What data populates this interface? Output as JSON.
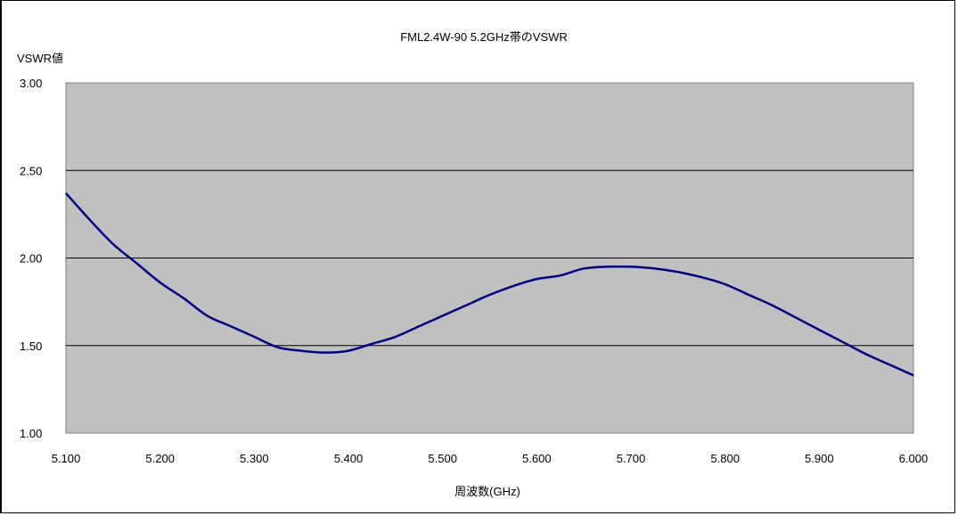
{
  "chart_data": {
    "type": "line",
    "title": "FML2.4W-90 5.2GHz帯のVSWR",
    "ylabel": "VSWR値",
    "xlabel": "周波数(GHz)",
    "xlim": [
      5.1,
      6.0
    ],
    "ylim": [
      1.0,
      3.0
    ],
    "x_ticks": [
      "5.100",
      "5.200",
      "5.300",
      "5.400",
      "5.500",
      "5.600",
      "5.700",
      "5.800",
      "5.900",
      "6.000"
    ],
    "x_tick_values": [
      5.1,
      5.2,
      5.3,
      5.4,
      5.5,
      5.6,
      5.7,
      5.8,
      5.9,
      6.0
    ],
    "y_ticks": [
      "1.00",
      "1.50",
      "2.00",
      "2.50",
      "3.00"
    ],
    "y_tick_values": [
      1.0,
      1.5,
      2.0,
      2.5,
      3.0
    ],
    "grid": "horizontal",
    "colors": {
      "plot_bg": "#c0c0c0",
      "line": "#000080",
      "grid": "#000000"
    },
    "series": [
      {
        "x": [
          5.1,
          5.125,
          5.15,
          5.175,
          5.2,
          5.225,
          5.25,
          5.275,
          5.3,
          5.325,
          5.35,
          5.375,
          5.4,
          5.425,
          5.45,
          5.475,
          5.5,
          5.525,
          5.55,
          5.575,
          5.6,
          5.625,
          5.65,
          5.675,
          5.7,
          5.725,
          5.75,
          5.775,
          5.8,
          5.825,
          5.85,
          5.875,
          5.9,
          5.925,
          5.95,
          5.975,
          6.0
        ],
        "values": [
          2.37,
          2.22,
          2.08,
          1.97,
          1.86,
          1.77,
          1.67,
          1.61,
          1.55,
          1.49,
          1.47,
          1.46,
          1.47,
          1.51,
          1.55,
          1.61,
          1.67,
          1.73,
          1.79,
          1.84,
          1.88,
          1.9,
          1.94,
          1.95,
          1.95,
          1.94,
          1.92,
          1.89,
          1.85,
          1.79,
          1.73,
          1.66,
          1.59,
          1.52,
          1.45,
          1.39,
          1.33
        ]
      }
    ]
  }
}
